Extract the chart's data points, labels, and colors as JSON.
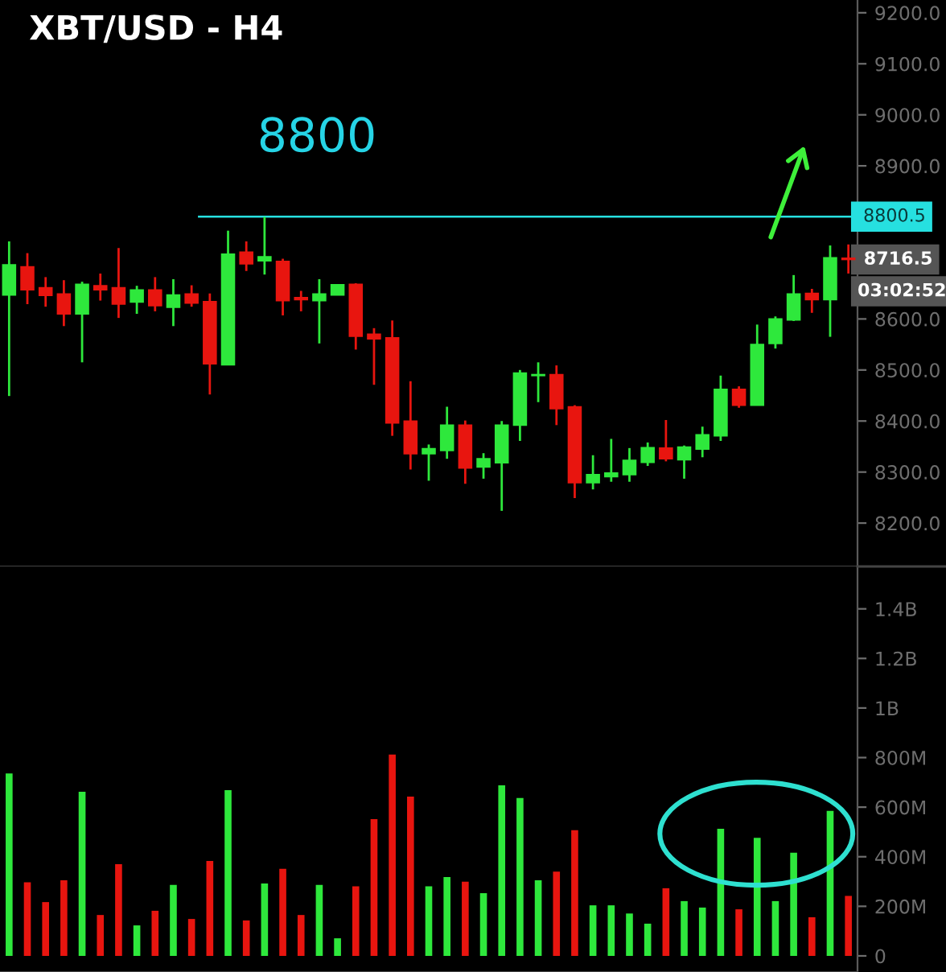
{
  "chart_data": [
    {
      "type": "candlestick",
      "title": "XBT/USD - H4",
      "categories": [
        null,
        null,
        null,
        null,
        null,
        null,
        null,
        null,
        null,
        null,
        null,
        null,
        null,
        null,
        null,
        null,
        null,
        null,
        null,
        null,
        null,
        null,
        null,
        null,
        null,
        null,
        null,
        null,
        null,
        null,
        null,
        null,
        null,
        null,
        null,
        null,
        null,
        null,
        null,
        null,
        null,
        null,
        null,
        null,
        null,
        null,
        null
      ],
      "ohlc": [
        [
          8647,
          8752,
          8449,
          8706
        ],
        [
          8702,
          8729,
          8629,
          8657
        ],
        [
          8661,
          8682,
          8624,
          8646
        ],
        [
          8649,
          8676,
          8586,
          8610
        ],
        [
          8610,
          8673,
          8515,
          8668
        ],
        [
          8665,
          8689,
          8636,
          8657
        ],
        [
          8661,
          8739,
          8602,
          8629
        ],
        [
          8633,
          8665,
          8610,
          8657
        ],
        [
          8657,
          8682,
          8615,
          8626
        ],
        [
          8623,
          8678,
          8586,
          8647
        ],
        [
          8649,
          8666,
          8624,
          8631
        ],
        [
          8634,
          8650,
          8452,
          8512
        ],
        [
          8510,
          8773,
          8510,
          8727
        ],
        [
          8731,
          8752,
          8694,
          8708
        ],
        [
          8714,
          8800,
          8687,
          8722
        ],
        [
          8713,
          8718,
          8607,
          8636
        ],
        [
          8642,
          8655,
          8615,
          8638
        ],
        [
          8636,
          8678,
          8552,
          8649
        ],
        [
          8647,
          8668,
          8647,
          8667
        ],
        [
          8668,
          8670,
          8540,
          8566
        ],
        [
          8570,
          8582,
          8471,
          8561
        ],
        [
          8563,
          8597,
          8371,
          8396
        ],
        [
          8400,
          8478,
          8305,
          8336
        ],
        [
          8336,
          8354,
          8283,
          8346
        ],
        [
          8342,
          8428,
          8326,
          8392
        ],
        [
          8392,
          8401,
          8277,
          8308
        ],
        [
          8310,
          8337,
          8287,
          8326
        ],
        [
          8318,
          8400,
          8224,
          8392
        ],
        [
          8392,
          8500,
          8361,
          8494
        ],
        [
          8489,
          8515,
          8437,
          8491
        ],
        [
          8491,
          8509,
          8392,
          8424
        ],
        [
          8428,
          8431,
          8249,
          8279
        ],
        [
          8279,
          8333,
          8266,
          8295
        ],
        [
          8291,
          8365,
          8281,
          8298
        ],
        [
          8295,
          8347,
          8281,
          8323
        ],
        [
          8319,
          8358,
          8312,
          8348
        ],
        [
          8347,
          8402,
          8321,
          8326
        ],
        [
          8324,
          8352,
          8287,
          8349
        ],
        [
          8345,
          8389,
          8329,
          8373
        ],
        [
          8371,
          8489,
          8361,
          8462
        ],
        [
          8462,
          8468,
          8426,
          8431
        ],
        [
          8431,
          8589,
          8431,
          8550
        ],
        [
          8552,
          8605,
          8542,
          8600
        ],
        [
          8598,
          8686,
          8596,
          8649
        ],
        [
          8650,
          8659,
          8612,
          8638
        ],
        [
          8638,
          8744,
          8565,
          8720
        ],
        [
          8719,
          8746,
          8689,
          8716.5
        ]
      ],
      "colors": [
        "#2ee83c",
        "#e8150f",
        "#e8150f",
        "#e8150f",
        "#2ee83c",
        "#e8150f",
        "#e8150f",
        "#2ee83c",
        "#e8150f",
        "#2ee83c",
        "#e8150f",
        "#e8150f",
        "#2ee83c",
        "#e8150f",
        "#2ee83c",
        "#e8150f",
        "#e8150f",
        "#2ee83c",
        "#2ee83c",
        "#e8150f",
        "#e8150f",
        "#e8150f",
        "#e8150f",
        "#2ee83c",
        "#2ee83c",
        "#e8150f",
        "#2ee83c",
        "#2ee83c",
        "#2ee83c",
        "#2ee83c",
        "#e8150f",
        "#e8150f",
        "#2ee83c",
        "#2ee83c",
        "#2ee83c",
        "#2ee83c",
        "#e8150f",
        "#2ee83c",
        "#2ee83c",
        "#2ee83c",
        "#e8150f",
        "#2ee83c",
        "#2ee83c",
        "#2ee83c",
        "#e8150f",
        "#2ee83c",
        "#e8150f"
      ],
      "ylim": [
        8115,
        9225
      ],
      "yticks": [
        {
          "value": 8200,
          "label": "8200.0"
        },
        {
          "value": 8300,
          "label": "8300.0"
        },
        {
          "value": 8400,
          "label": "8400.0"
        },
        {
          "value": 8500,
          "label": "8500.0"
        },
        {
          "value": 8600,
          "label": "8600.0"
        },
        {
          "value": 8700,
          "label": null
        },
        {
          "value": 8800,
          "label": null
        },
        {
          "value": 8900,
          "label": "8900.0"
        },
        {
          "value": 9000,
          "label": "9000.0"
        },
        {
          "value": 9100,
          "label": "9100.0"
        },
        {
          "value": 9200,
          "label": "9200.0"
        }
      ],
      "ref_lines": [
        {
          "axis": "y",
          "value": 8800.5,
          "label": "8800.5",
          "color": "#26e0e0"
        }
      ],
      "annotations": [
        "8800",
        "8716.5",
        "03:02:52"
      ],
      "tick_labels": "y",
      "grid": false
    },
    {
      "type": "bar",
      "categories": [
        null,
        null,
        null,
        null,
        null,
        null,
        null,
        null,
        null,
        null,
        null,
        null,
        null,
        null,
        null,
        null,
        null,
        null,
        null,
        null,
        null,
        null,
        null,
        null,
        null,
        null,
        null,
        null,
        null,
        null,
        null,
        null,
        null,
        null,
        null,
        null,
        null,
        null,
        null,
        null,
        null,
        null,
        null,
        null,
        null,
        null,
        null
      ],
      "values": [
        736000000,
        297000000,
        217000000,
        305000000,
        662000000,
        165000000,
        370000000,
        123000000,
        182000000,
        286000000,
        149000000,
        383000000,
        669000000,
        143000000,
        292000000,
        351000000,
        165000000,
        286000000,
        71000000,
        281000000,
        552000000,
        812000000,
        643000000,
        281000000,
        318000000,
        299000000,
        253000000,
        688000000,
        637000000,
        305000000,
        340000000,
        507000000,
        204000000,
        204000000,
        171000000,
        130000000,
        273000000,
        221000000,
        195000000,
        513000000,
        188000000,
        476000000,
        221000000,
        416000000,
        156000000,
        585000000,
        242000000
      ],
      "colors": [
        "#2ee83c",
        "#e8150f",
        "#e8150f",
        "#e8150f",
        "#2ee83c",
        "#e8150f",
        "#e8150f",
        "#2ee83c",
        "#e8150f",
        "#2ee83c",
        "#e8150f",
        "#e8150f",
        "#2ee83c",
        "#e8150f",
        "#2ee83c",
        "#e8150f",
        "#e8150f",
        "#2ee83c",
        "#2ee83c",
        "#e8150f",
        "#e8150f",
        "#e8150f",
        "#e8150f",
        "#2ee83c",
        "#2ee83c",
        "#e8150f",
        "#2ee83c",
        "#2ee83c",
        "#2ee83c",
        "#2ee83c",
        "#e8150f",
        "#e8150f",
        "#2ee83c",
        "#2ee83c",
        "#2ee83c",
        "#2ee83c",
        "#e8150f",
        "#2ee83c",
        "#2ee83c",
        "#2ee83c",
        "#e8150f",
        "#2ee83c",
        "#2ee83c",
        "#2ee83c",
        "#e8150f",
        "#2ee83c",
        "#e8150f"
      ],
      "ylim": [
        -65000000,
        1571000000
      ],
      "yticks": [
        0,
        {
          "value": 200000000,
          "label": "200M"
        },
        {
          "value": 400000000,
          "label": "400M"
        },
        {
          "value": 600000000,
          "label": "600M"
        },
        {
          "value": 800000000,
          "label": "800M"
        },
        {
          "value": 1000000000,
          "label": "1B"
        },
        {
          "value": 1200000000,
          "label": "1.2B"
        },
        {
          "value": 1400000000,
          "label": "1.4B"
        }
      ],
      "tick_labels": "y",
      "grid": false
    }
  ]
}
